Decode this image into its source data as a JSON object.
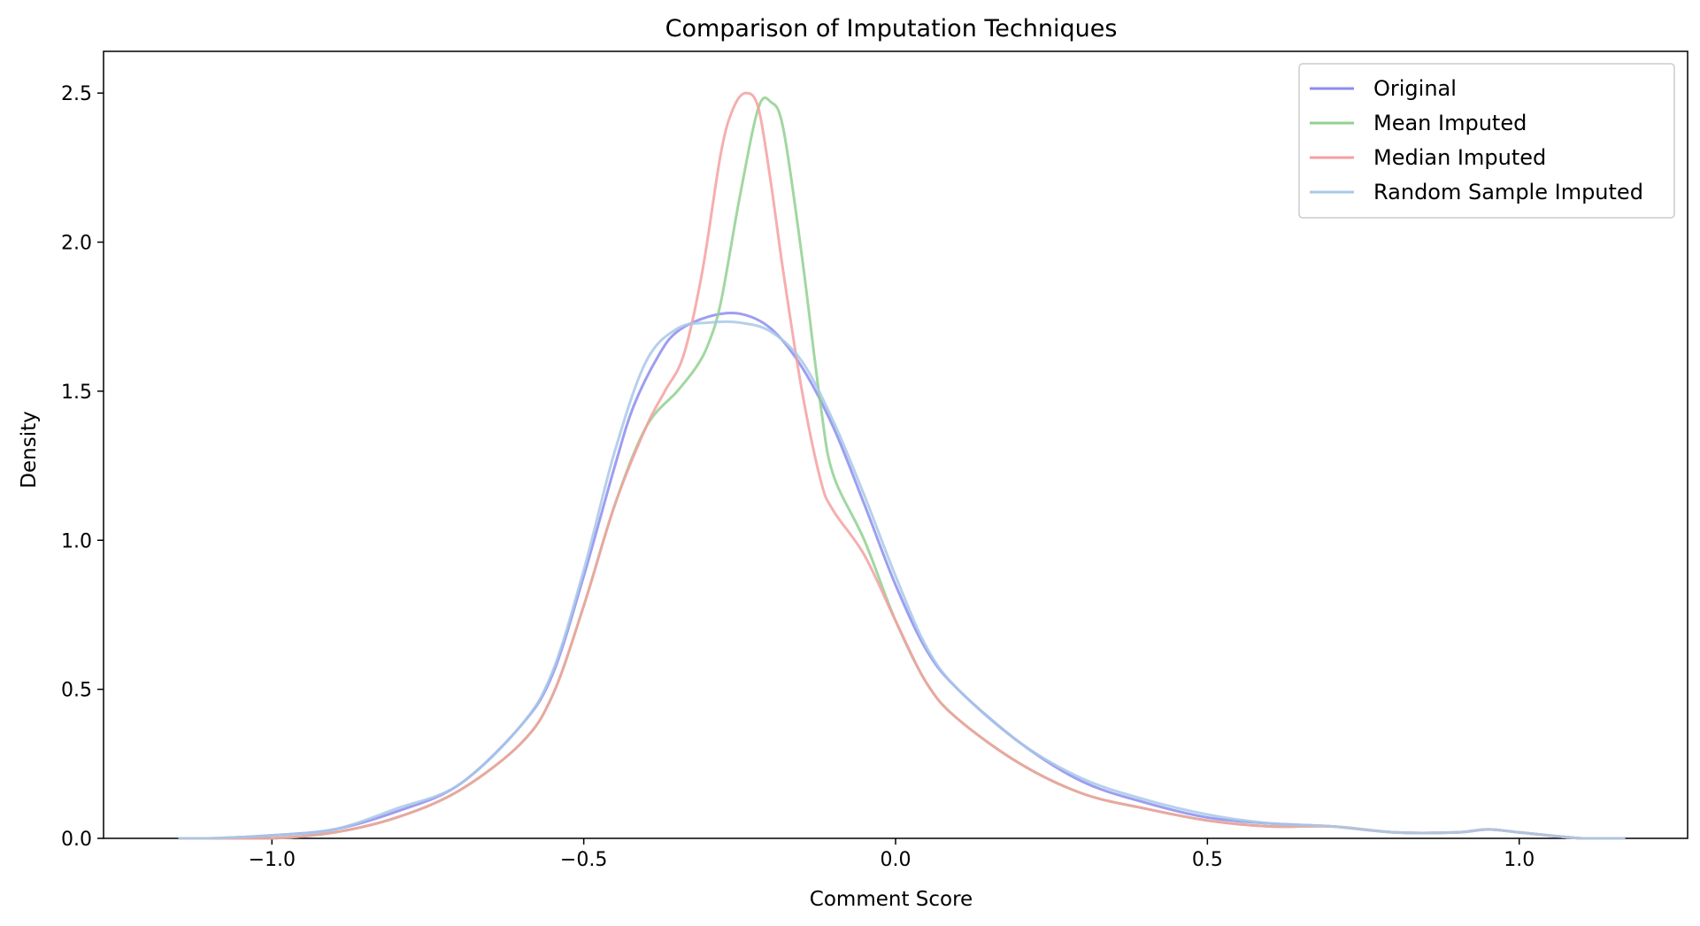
{
  "chart_data": {
    "type": "line",
    "title": "Comparison of Imputation Techniques",
    "xlabel": "Comment Score",
    "ylabel": "Density",
    "xlim": [
      -1.27,
      1.27
    ],
    "ylim": [
      0,
      2.64
    ],
    "xticks": [
      {
        "value": -1.0,
        "label": "−1.0"
      },
      {
        "value": -0.5,
        "label": "−0.5"
      },
      {
        "value": 0.0,
        "label": "0.0"
      },
      {
        "value": 0.5,
        "label": "0.5"
      },
      {
        "value": 1.0,
        "label": "1.0"
      }
    ],
    "yticks": [
      {
        "value": 0.0,
        "label": "0.0"
      },
      {
        "value": 0.5,
        "label": "0.5"
      },
      {
        "value": 1.0,
        "label": "1.0"
      },
      {
        "value": 1.5,
        "label": "1.5"
      },
      {
        "value": 2.0,
        "label": "2.0"
      },
      {
        "value": 2.5,
        "label": "2.5"
      }
    ],
    "grid": false,
    "legend_position": "top-right",
    "series": [
      {
        "name": "Original",
        "color": "#8c8cf0",
        "x": [
          -1.15,
          -1.1,
          -1.0,
          -0.9,
          -0.8,
          -0.7,
          -0.6,
          -0.55,
          -0.5,
          -0.45,
          -0.42,
          -0.38,
          -0.35,
          -0.3,
          -0.25,
          -0.2,
          -0.15,
          -0.1,
          -0.05,
          0.0,
          0.05,
          0.1,
          0.2,
          0.3,
          0.4,
          0.5,
          0.6,
          0.7,
          0.8,
          0.9,
          0.95,
          1.0,
          1.1,
          1.17
        ],
        "y": [
          0.0,
          0.0,
          0.01,
          0.03,
          0.09,
          0.18,
          0.38,
          0.55,
          0.88,
          1.25,
          1.45,
          1.62,
          1.7,
          1.75,
          1.76,
          1.71,
          1.58,
          1.38,
          1.12,
          0.85,
          0.63,
          0.5,
          0.32,
          0.19,
          0.12,
          0.07,
          0.05,
          0.04,
          0.02,
          0.02,
          0.03,
          0.02,
          0.0,
          0.0
        ]
      },
      {
        "name": "Mean Imputed",
        "color": "#90d090",
        "x": [
          -1.15,
          -1.1,
          -1.0,
          -0.9,
          -0.8,
          -0.7,
          -0.6,
          -0.55,
          -0.5,
          -0.45,
          -0.4,
          -0.35,
          -0.32,
          -0.3,
          -0.28,
          -0.25,
          -0.22,
          -0.2,
          -0.18,
          -0.15,
          -0.12,
          -0.1,
          -0.05,
          0.0,
          0.05,
          0.1,
          0.2,
          0.3,
          0.4,
          0.5,
          0.6,
          0.7,
          0.8,
          0.9,
          0.95,
          1.0,
          1.1,
          1.17
        ],
        "y": [
          0.0,
          0.0,
          0.0,
          0.02,
          0.07,
          0.16,
          0.32,
          0.48,
          0.78,
          1.12,
          1.38,
          1.5,
          1.58,
          1.66,
          1.8,
          2.15,
          2.45,
          2.47,
          2.38,
          1.95,
          1.45,
          1.22,
          1.0,
          0.73,
          0.52,
          0.4,
          0.25,
          0.15,
          0.1,
          0.06,
          0.04,
          0.04,
          0.02,
          0.02,
          0.03,
          0.02,
          0.0,
          0.0
        ]
      },
      {
        "name": "Median Imputed",
        "color": "#f5a0a0",
        "x": [
          -1.15,
          -1.1,
          -1.0,
          -0.9,
          -0.8,
          -0.7,
          -0.6,
          -0.55,
          -0.5,
          -0.45,
          -0.4,
          -0.37,
          -0.34,
          -0.31,
          -0.28,
          -0.26,
          -0.24,
          -0.22,
          -0.2,
          -0.18,
          -0.15,
          -0.12,
          -0.1,
          -0.05,
          0.0,
          0.05,
          0.1,
          0.2,
          0.3,
          0.4,
          0.5,
          0.6,
          0.7,
          0.8,
          0.9,
          0.95,
          1.0,
          1.1,
          1.17
        ],
        "y": [
          0.0,
          0.0,
          0.0,
          0.02,
          0.07,
          0.16,
          0.32,
          0.48,
          0.78,
          1.12,
          1.38,
          1.5,
          1.62,
          1.9,
          2.3,
          2.45,
          2.5,
          2.45,
          2.2,
          1.9,
          1.5,
          1.2,
          1.1,
          0.95,
          0.73,
          0.52,
          0.4,
          0.25,
          0.15,
          0.1,
          0.06,
          0.04,
          0.04,
          0.02,
          0.02,
          0.03,
          0.02,
          0.0,
          0.0
        ]
      },
      {
        "name": "Random Sample Imputed",
        "color": "#a8c8e8",
        "x": [
          -1.15,
          -1.1,
          -1.0,
          -0.9,
          -0.8,
          -0.7,
          -0.6,
          -0.55,
          -0.5,
          -0.45,
          -0.4,
          -0.35,
          -0.3,
          -0.25,
          -0.2,
          -0.15,
          -0.1,
          -0.05,
          0.0,
          0.05,
          0.1,
          0.2,
          0.3,
          0.4,
          0.5,
          0.6,
          0.7,
          0.8,
          0.9,
          0.95,
          1.0,
          1.1,
          1.17
        ],
        "y": [
          0.0,
          0.0,
          0.01,
          0.03,
          0.1,
          0.18,
          0.38,
          0.56,
          0.9,
          1.3,
          1.6,
          1.71,
          1.73,
          1.73,
          1.7,
          1.6,
          1.4,
          1.15,
          0.88,
          0.64,
          0.5,
          0.32,
          0.2,
          0.13,
          0.08,
          0.05,
          0.04,
          0.02,
          0.02,
          0.03,
          0.02,
          0.0,
          0.0
        ]
      }
    ]
  }
}
